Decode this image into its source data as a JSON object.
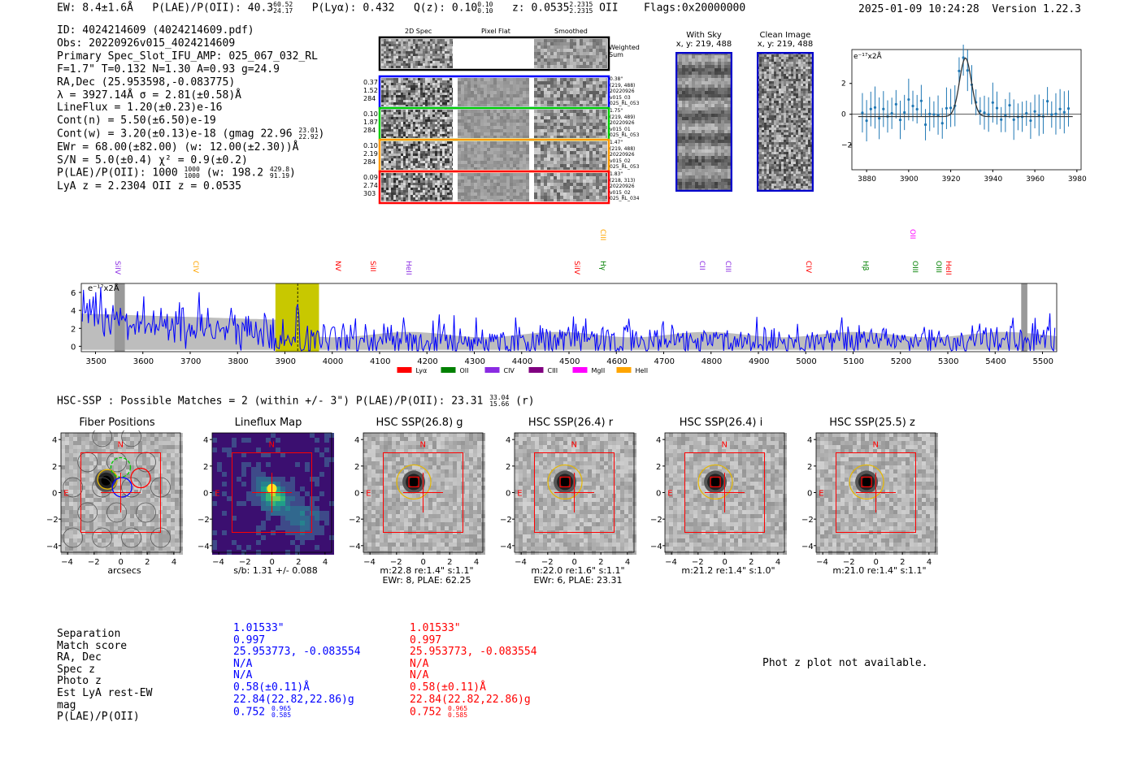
{
  "header": {
    "ew": "EW: 8.4±1.6Å",
    "plae_label": "P(LAE)/P(OII): 40.3",
    "plae_hi": "60.52",
    "plae_lo": "24.17",
    "plya": "P(Lyα): 0.432",
    "qz_label": "Q(z): 0.10",
    "qz_hi": "0.10",
    "qz_lo": "0.10",
    "z_label": "z: 0.0535",
    "z_hi": "2.2315",
    "z_lo": "2.2315",
    "z_line": "OII",
    "flags": "Flags:0x20000000",
    "datetime": "2025-01-09 10:24:28",
    "version": "Version 1.22.3"
  },
  "info": {
    "id": "ID: 4024214609 (4024214609.pdf)",
    "obs": "Obs: 20220926v015_4024214609",
    "primary": "Primary Spec_Slot_IFU_AMP: 025_067_032_RL",
    "fit": "F=1.7\"  T=0.132  N=1.30  A=0.93  g=24.9",
    "radec": "RA,Dec (25.953598,-0.083775)",
    "lambda": "λ = 3927.14Å  σ = 2.81(±0.58)Å",
    "lineflux": "LineFlux = 1.20(±0.23)e-16",
    "contn": "Cont(n) = 5.50(±6.50)e-19",
    "contw": "Cont(w) = 3.20(±0.13)e-18 (gmag 22.96",
    "contw_hi": "23.01",
    "contw_lo": "22.92",
    "ewr": "EWr = 68.00(±82.00) (w: 12.00(±2.30))Å",
    "sn": "S/N = 5.0(±0.4)  χ² = 0.9(±0.2)",
    "plae": "P(LAE)/P(OII): 1000",
    "plae_hi": "1000",
    "plae_lo": "1000",
    "plae_w": "(w: 198.2",
    "plae_w_hi": "429.8",
    "plae_w_lo": "91.19",
    "lya": "LyA z = 2.2304  OII z = 0.0535"
  },
  "twod": {
    "col_headers": [
      "2D Spec",
      "Pixel Flat",
      "Smoothed"
    ],
    "weighted_sum": "Weighted Sum",
    "rows": [
      {
        "left": [
          "0.37",
          "1.52",
          "284"
        ],
        "right": [
          "0.38\"",
          "(219, 488)",
          "20220926",
          "v015_03",
          "025_RL_053"
        ],
        "color": "#0000ff"
      },
      {
        "left": [
          "0.10",
          "1.87",
          "284"
        ],
        "right": [
          "1.75\"",
          "(219, 489)",
          "20220926",
          "v015_01",
          "025_RL_053"
        ],
        "color": "#00cc00"
      },
      {
        "left": [
          "0.10",
          "2.19",
          "284"
        ],
        "right": [
          "1.47\"",
          "(219, 488)",
          "20220926",
          "v015_02",
          "025_RL_053"
        ],
        "color": "#ff9900"
      },
      {
        "left": [
          "0.09",
          "2.74",
          "303"
        ],
        "right": [
          "1.83\"",
          "(218, 313)",
          "20220926",
          "v015_02",
          "025_RL_034"
        ],
        "color": "#ff0000"
      }
    ]
  },
  "skyimgs": {
    "with_sky": "With Sky",
    "with_sky_xy": "x, y: 219, 488",
    "clean": "Clean Image",
    "clean_xy": "x, y: 219, 488"
  },
  "zoom_plot": {
    "unit": "e⁻¹⁷x2Å",
    "x_ticks": [
      "3880",
      "3900",
      "3920",
      "3940",
      "3960",
      "3980"
    ],
    "y_ticks": [
      "2",
      "0",
      "−2"
    ]
  },
  "spectrum": {
    "unit": "e⁻¹⁷x2Å",
    "y_ticks": [
      "6",
      "4",
      "2",
      "0"
    ],
    "x_ticks": [
      "3500",
      "3600",
      "3700",
      "3800",
      "3900",
      "4000",
      "4100",
      "4200",
      "4300",
      "4400",
      "4500",
      "4600",
      "4700",
      "4800",
      "4900",
      "5000",
      "5100",
      "5200",
      "5300",
      "5400",
      "5500"
    ],
    "line_labels": [
      {
        "text": "SiIV",
        "wave": 3545,
        "color": "#8a2be2"
      },
      {
        "text": "CIV",
        "wave": 3710,
        "color": "#ffa500"
      },
      {
        "text": "NV",
        "wave": 4010,
        "color": "#ff0000"
      },
      {
        "text": "SiII",
        "wave": 4085,
        "color": "#ff0000"
      },
      {
        "text": "HeII",
        "wave": 4160,
        "color": "#8a2be2"
      },
      {
        "text": "SiIV",
        "wave": 4515,
        "color": "#ff0000"
      },
      {
        "text": "CIII",
        "wave": 4570,
        "color": "#ffa500"
      },
      {
        "text": "Hγ",
        "wave": 4570,
        "color": "#008000"
      },
      {
        "text": "CII",
        "wave": 4780,
        "color": "#8a2be2"
      },
      {
        "text": "CIII",
        "wave": 4835,
        "color": "#8a2be2"
      },
      {
        "text": "CIV",
        "wave": 5005,
        "color": "#ff0000"
      },
      {
        "text": "Hβ",
        "wave": 5125,
        "color": "#008000"
      },
      {
        "text": "OII",
        "wave": 5225,
        "color": "#ff00ff"
      },
      {
        "text": "OIII",
        "wave": 5230,
        "color": "#008000"
      },
      {
        "text": "OIII",
        "wave": 5280,
        "color": "#008000"
      },
      {
        "text": "HeII",
        "wave": 5300,
        "color": "#ff0000"
      }
    ],
    "legend": [
      {
        "label": "Lyα",
        "color": "#ff0000"
      },
      {
        "label": "OII",
        "color": "#008000"
      },
      {
        "label": "CIV",
        "color": "#8a2be2"
      },
      {
        "label": "CIII",
        "color": "#800080"
      },
      {
        "label": "MgII",
        "color": "#ff00ff"
      },
      {
        "label": "HeII",
        "color": "#ffa500"
      }
    ]
  },
  "hsc": {
    "title": "HSC-SSP : Possible Matches = 2 (within +/- 3\")  P(LAE)/P(OII): 23.31",
    "title_hi": "33.04",
    "title_lo": "15.66",
    "title_band": "(r)",
    "panels": [
      {
        "title": "Fiber Positions",
        "cap1": "arcsecs",
        "cap2": ""
      },
      {
        "title": "Lineflux Map",
        "cap1": "s/b: 1.31 +/- 0.088",
        "cap2": ""
      },
      {
        "title": "HSC SSP(26.8) g",
        "cap1": "m:22.8  re:1.4\"  s:1.1\"",
        "cap2": "EWr: 8, PLAE: 62.25"
      },
      {
        "title": "HSC SSP(26.4) r",
        "cap1": "m:22.0  re:1.6\"  s:1.1\"",
        "cap2": "EWr: 6, PLAE: 23.31"
      },
      {
        "title": "HSC SSP(26.4) i",
        "cap1": "m:21.2  re:1.4\"  s:1.0\"",
        "cap2": ""
      },
      {
        "title": "HSC SSP(25.5) z",
        "cap1": "m:21.0  re:1.4\"  s:1.1\"",
        "cap2": ""
      }
    ],
    "y_ticks": [
      "4",
      "2",
      "0",
      "−2",
      "−4"
    ],
    "x_ticks": [
      "−4",
      "−2",
      "0",
      "2",
      "4"
    ],
    "n_label": "N",
    "e_label": "E"
  },
  "matches": {
    "labels": [
      "Separation",
      "Match score",
      "RA, Dec",
      "Spec z",
      "Photo z",
      "Est LyA rest-EW",
      "mag",
      "P(LAE)/P(OII)"
    ],
    "col1": [
      "1.01533\"",
      "0.997",
      "25.953773, -0.083554",
      "N/A",
      "N/A",
      "0.58(±0.11)Å",
      "22.84(22.82,22.86)g",
      "0.752"
    ],
    "col1_plae_hi": "0.965",
    "col1_plae_lo": "0.585",
    "col2": [
      "1.01533\"",
      "0.997",
      "25.953773, -0.083554",
      "N/A",
      "N/A",
      "0.58(±0.11)Å",
      "22.84(22.82,22.86)g",
      "0.752"
    ],
    "col2_plae_hi": "0.965",
    "col2_plae_lo": "0.585",
    "photz_msg": "Phot z plot not available."
  }
}
